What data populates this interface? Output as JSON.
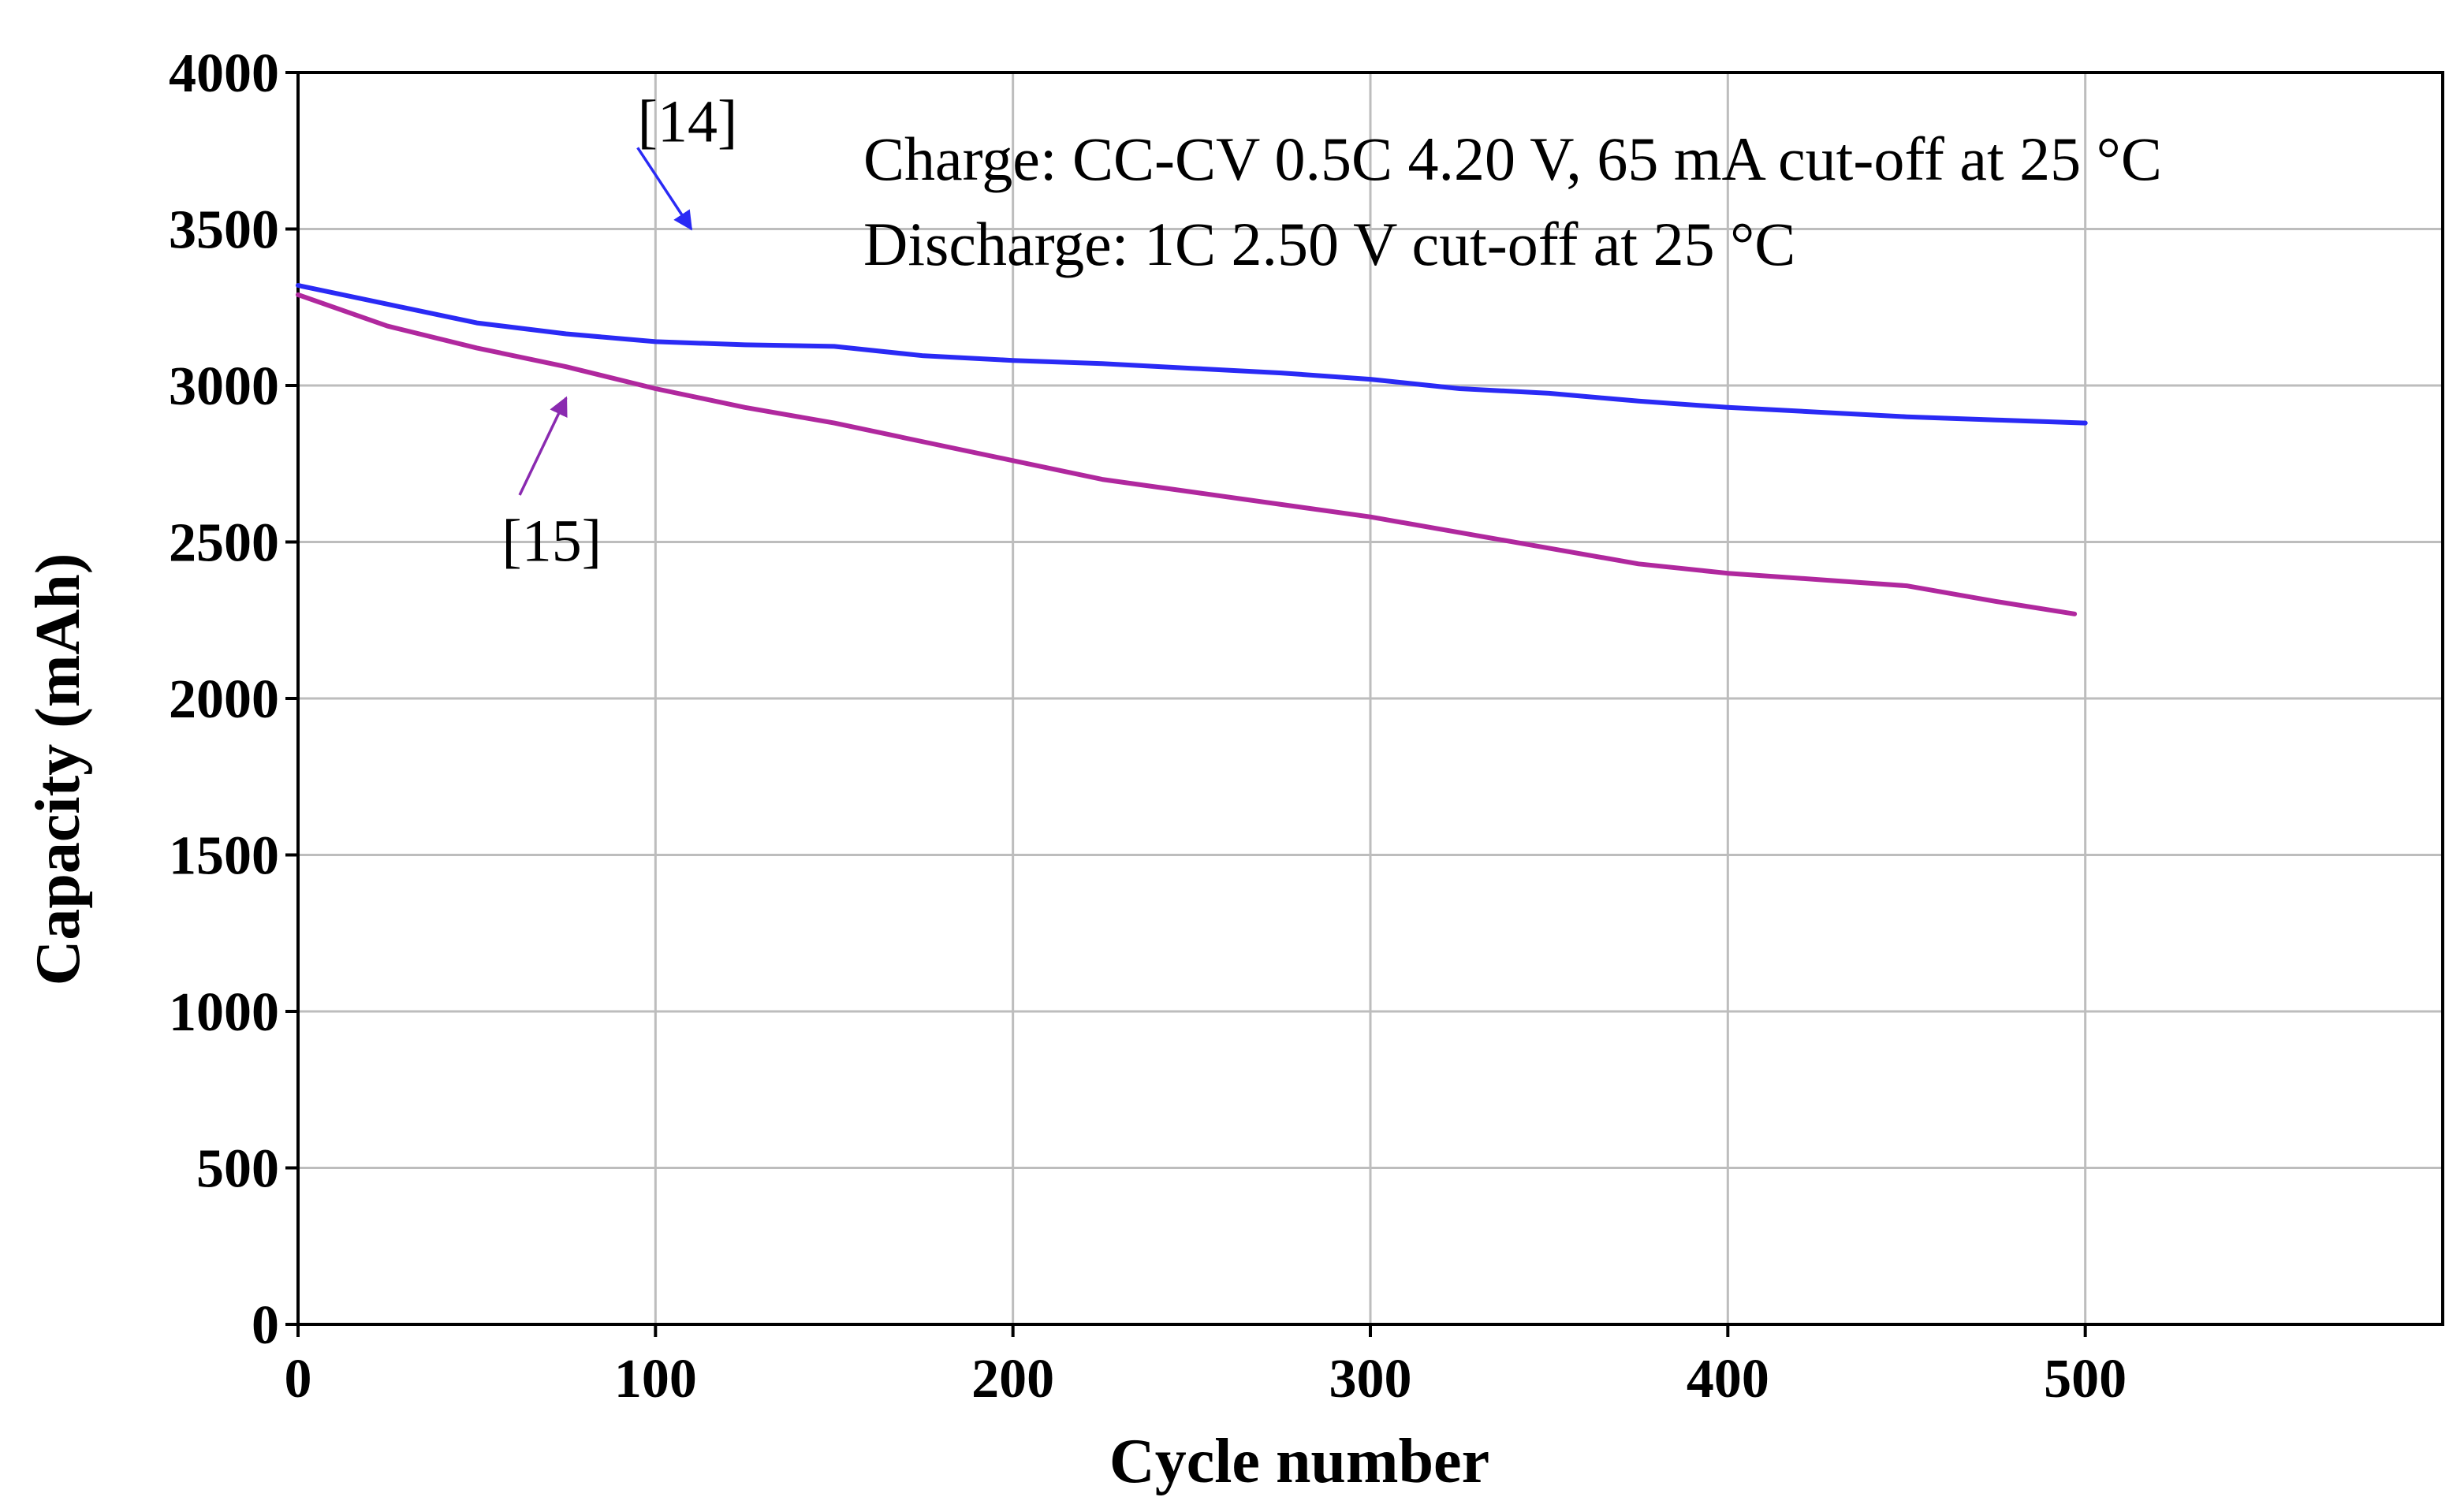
{
  "chart_data": {
    "type": "line",
    "xlabel": "Cycle number",
    "ylabel": "Capacity (mAh)",
    "xlim": [
      0,
      600
    ],
    "ylim": [
      0,
      4000
    ],
    "x_ticks": [
      0,
      100,
      200,
      300,
      400,
      500
    ],
    "y_ticks": [
      0,
      500,
      1000,
      1500,
      2000,
      2500,
      3000,
      3500,
      4000
    ],
    "x_tick_labels": [
      "0",
      "100",
      "200",
      "300",
      "400",
      "500"
    ],
    "y_tick_labels": [
      "0",
      "500",
      "1000",
      "1500",
      "2000",
      "2500",
      "3000",
      "3500",
      "4000"
    ],
    "grid": true,
    "conditions": [
      "Charge: CC-CV 0.5C  4.20 V, 65 mA cut-off at 25 °C",
      "Discharge: 1C 2.50 V cut-off at 25 °C"
    ],
    "series": [
      {
        "name": "[14]",
        "color": "#2a2af5",
        "x": [
          0,
          25,
          50,
          75,
          100,
          125,
          150,
          175,
          200,
          225,
          250,
          275,
          300,
          325,
          350,
          375,
          400,
          425,
          450,
          475,
          500
        ],
        "y": [
          3320,
          3260,
          3200,
          3165,
          3140,
          3130,
          3125,
          3095,
          3080,
          3070,
          3055,
          3040,
          3020,
          2990,
          2975,
          2950,
          2930,
          2915,
          2900,
          2890,
          2880
        ]
      },
      {
        "name": "[15]",
        "color": "#b0289e",
        "x": [
          0,
          25,
          50,
          75,
          100,
          125,
          150,
          175,
          200,
          225,
          250,
          275,
          300,
          325,
          350,
          375,
          400,
          425,
          450,
          475,
          497
        ],
        "y": [
          3290,
          3190,
          3120,
          3060,
          2990,
          2930,
          2880,
          2820,
          2760,
          2700,
          2660,
          2620,
          2580,
          2530,
          2480,
          2430,
          2400,
          2380,
          2360,
          2310,
          2270
        ]
      }
    ],
    "annotations": [
      {
        "label": "[14]",
        "series": "[14]",
        "arrow_color": "#2a2af5",
        "from": [
          95,
          3760
        ],
        "to": [
          110,
          3500
        ],
        "text_at": [
          95,
          3780
        ]
      },
      {
        "label": "[15]",
        "series": "[15]",
        "arrow_color": "#8a2ab0",
        "from": [
          62,
          2650
        ],
        "to": [
          75,
          2960
        ],
        "text_at": [
          57,
          2440
        ]
      }
    ]
  }
}
